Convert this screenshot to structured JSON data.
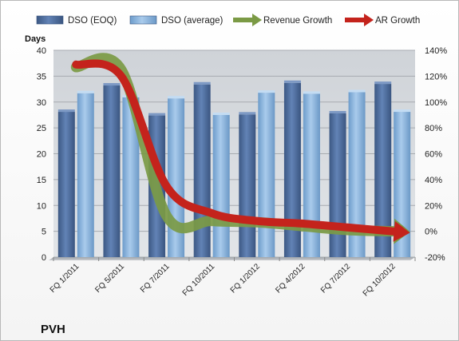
{
  "chart_data": {
    "type": "bar",
    "company": "PVH",
    "y_axis_title": "Days",
    "categories": [
      "FQ 1/2011",
      "FQ 5/2011",
      "FQ 7/2011",
      "FQ 10/2011",
      "FQ 1/2012",
      "FQ 4/2012",
      "FQ 7/2012",
      "FQ 10/2012"
    ],
    "ylim": [
      0,
      40
    ],
    "yticks": [
      0,
      5,
      10,
      15,
      20,
      25,
      30,
      35,
      40
    ],
    "y2lim": [
      -20,
      140
    ],
    "y2ticks": [
      "-20%",
      "0%",
      "20%",
      "40%",
      "60%",
      "80%",
      "100%",
      "120%",
      "140%"
    ],
    "grid": true,
    "legend_position": "top",
    "series": [
      {
        "name": "DSO (EOQ)",
        "kind": "bar",
        "axis": "left",
        "color": "#4f6e9e",
        "values": [
          28.1,
          33.2,
          27.4,
          33.4,
          27.6,
          33.7,
          27.8,
          33.5
        ]
      },
      {
        "name": "DSO (average)",
        "kind": "bar",
        "axis": "left",
        "color": "#8cb6de",
        "values": [
          31.7,
          30.9,
          30.7,
          27.5,
          31.8,
          31.6,
          31.9,
          28.1
        ]
      },
      {
        "name": "Revenue Growth",
        "kind": "line",
        "axis": "right",
        "color": "#7b9a45",
        "values": [
          127,
          125,
          12,
          8,
          7,
          4,
          1,
          0
        ]
      },
      {
        "name": "AR Growth",
        "kind": "line",
        "axis": "right",
        "color": "#c4231c",
        "values": [
          129,
          120,
          35,
          14,
          8,
          6,
          3,
          0
        ]
      }
    ]
  }
}
